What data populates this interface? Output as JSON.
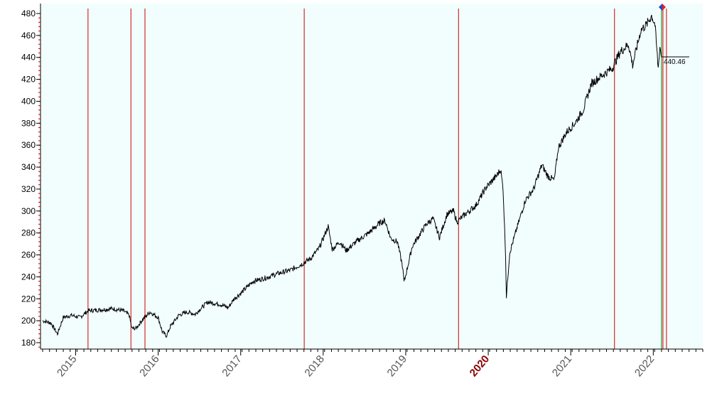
{
  "chart_data": {
    "type": "line",
    "title": "",
    "xlabel": "",
    "ylabel": "",
    "xlim": [
      2014.6,
      2022.6
    ],
    "ylim": [
      176,
      483
    ],
    "y_ticks": [
      180,
      200,
      220,
      240,
      260,
      280,
      300,
      320,
      340,
      360,
      380,
      400,
      420,
      440,
      460,
      480
    ],
    "y_tick_labels": [
      "180",
      "200",
      "220",
      "240",
      "260",
      "280",
      "300",
      "320",
      "340",
      "360",
      "380",
      "400",
      "420",
      "440",
      "460",
      "480"
    ],
    "x_ticks": [
      2015,
      2016,
      2017,
      2018,
      2019,
      2020,
      2021,
      2022
    ],
    "x_tick_labels": [
      "2015",
      "2016",
      "2017",
      "2018",
      "2019",
      "2020",
      "2021",
      "2022"
    ],
    "x_emphasized_label": "2020",
    "background_color": "#f2fefe",
    "line_color": "#000000",
    "vline_color": "#cc0000",
    "current_line_color": "#008000",
    "grid": false,
    "vertical_markers": [
      2015.15,
      2015.67,
      2015.84,
      2017.77,
      2019.64,
      2021.53,
      2022.16
    ],
    "current_marker": 2022.1,
    "last_price_label": "440.46",
    "last_price": 440.46,
    "series": [
      {
        "values": [
          [
            2014.6,
            200
          ],
          [
            2014.7,
            198
          ],
          [
            2014.78,
            188
          ],
          [
            2014.85,
            203
          ],
          [
            2014.95,
            205
          ],
          [
            2015.05,
            203
          ],
          [
            2015.15,
            209
          ],
          [
            2015.3,
            210
          ],
          [
            2015.45,
            211
          ],
          [
            2015.58,
            209
          ],
          [
            2015.65,
            205
          ],
          [
            2015.68,
            193
          ],
          [
            2015.73,
            193
          ],
          [
            2015.8,
            200
          ],
          [
            2015.9,
            208
          ],
          [
            2016.0,
            203
          ],
          [
            2016.05,
            190
          ],
          [
            2016.1,
            186
          ],
          [
            2016.15,
            195
          ],
          [
            2016.25,
            205
          ],
          [
            2016.35,
            208
          ],
          [
            2016.45,
            206
          ],
          [
            2016.5,
            210
          ],
          [
            2016.6,
            217
          ],
          [
            2016.75,
            215
          ],
          [
            2016.85,
            212
          ],
          [
            2016.92,
            220
          ],
          [
            2017.0,
            225
          ],
          [
            2017.15,
            236
          ],
          [
            2017.3,
            239
          ],
          [
            2017.45,
            243
          ],
          [
            2017.6,
            246
          ],
          [
            2017.75,
            252
          ],
          [
            2017.85,
            257
          ],
          [
            2017.95,
            266
          ],
          [
            2018.06,
            286
          ],
          [
            2018.11,
            265
          ],
          [
            2018.2,
            272
          ],
          [
            2018.28,
            264
          ],
          [
            2018.4,
            272
          ],
          [
            2018.55,
            280
          ],
          [
            2018.7,
            290
          ],
          [
            2018.75,
            291
          ],
          [
            2018.82,
            275
          ],
          [
            2018.9,
            272
          ],
          [
            2018.96,
            250
          ],
          [
            2018.98,
            235
          ],
          [
            2019.08,
            268
          ],
          [
            2019.25,
            288
          ],
          [
            2019.33,
            293
          ],
          [
            2019.41,
            276
          ],
          [
            2019.5,
            297
          ],
          [
            2019.58,
            300
          ],
          [
            2019.62,
            290
          ],
          [
            2019.72,
            297
          ],
          [
            2019.85,
            305
          ],
          [
            2019.97,
            321
          ],
          [
            2020.1,
            332
          ],
          [
            2020.15,
            338
          ],
          [
            2020.18,
            320
          ],
          [
            2020.21,
            260
          ],
          [
            2020.22,
            222
          ],
          [
            2020.26,
            262
          ],
          [
            2020.35,
            285
          ],
          [
            2020.45,
            310
          ],
          [
            2020.55,
            320
          ],
          [
            2020.65,
            342
          ],
          [
            2020.72,
            332
          ],
          [
            2020.8,
            328
          ],
          [
            2020.85,
            358
          ],
          [
            2020.95,
            372
          ],
          [
            2021.05,
            380
          ],
          [
            2021.15,
            392
          ],
          [
            2021.25,
            416
          ],
          [
            2021.35,
            422
          ],
          [
            2021.5,
            430
          ],
          [
            2021.6,
            445
          ],
          [
            2021.7,
            452
          ],
          [
            2021.75,
            433
          ],
          [
            2021.85,
            465
          ],
          [
            2021.92,
            470
          ],
          [
            2021.98,
            478
          ],
          [
            2022.02,
            470
          ],
          [
            2022.06,
            430
          ],
          [
            2022.08,
            450
          ],
          [
            2022.1,
            440.46
          ]
        ]
      }
    ]
  }
}
